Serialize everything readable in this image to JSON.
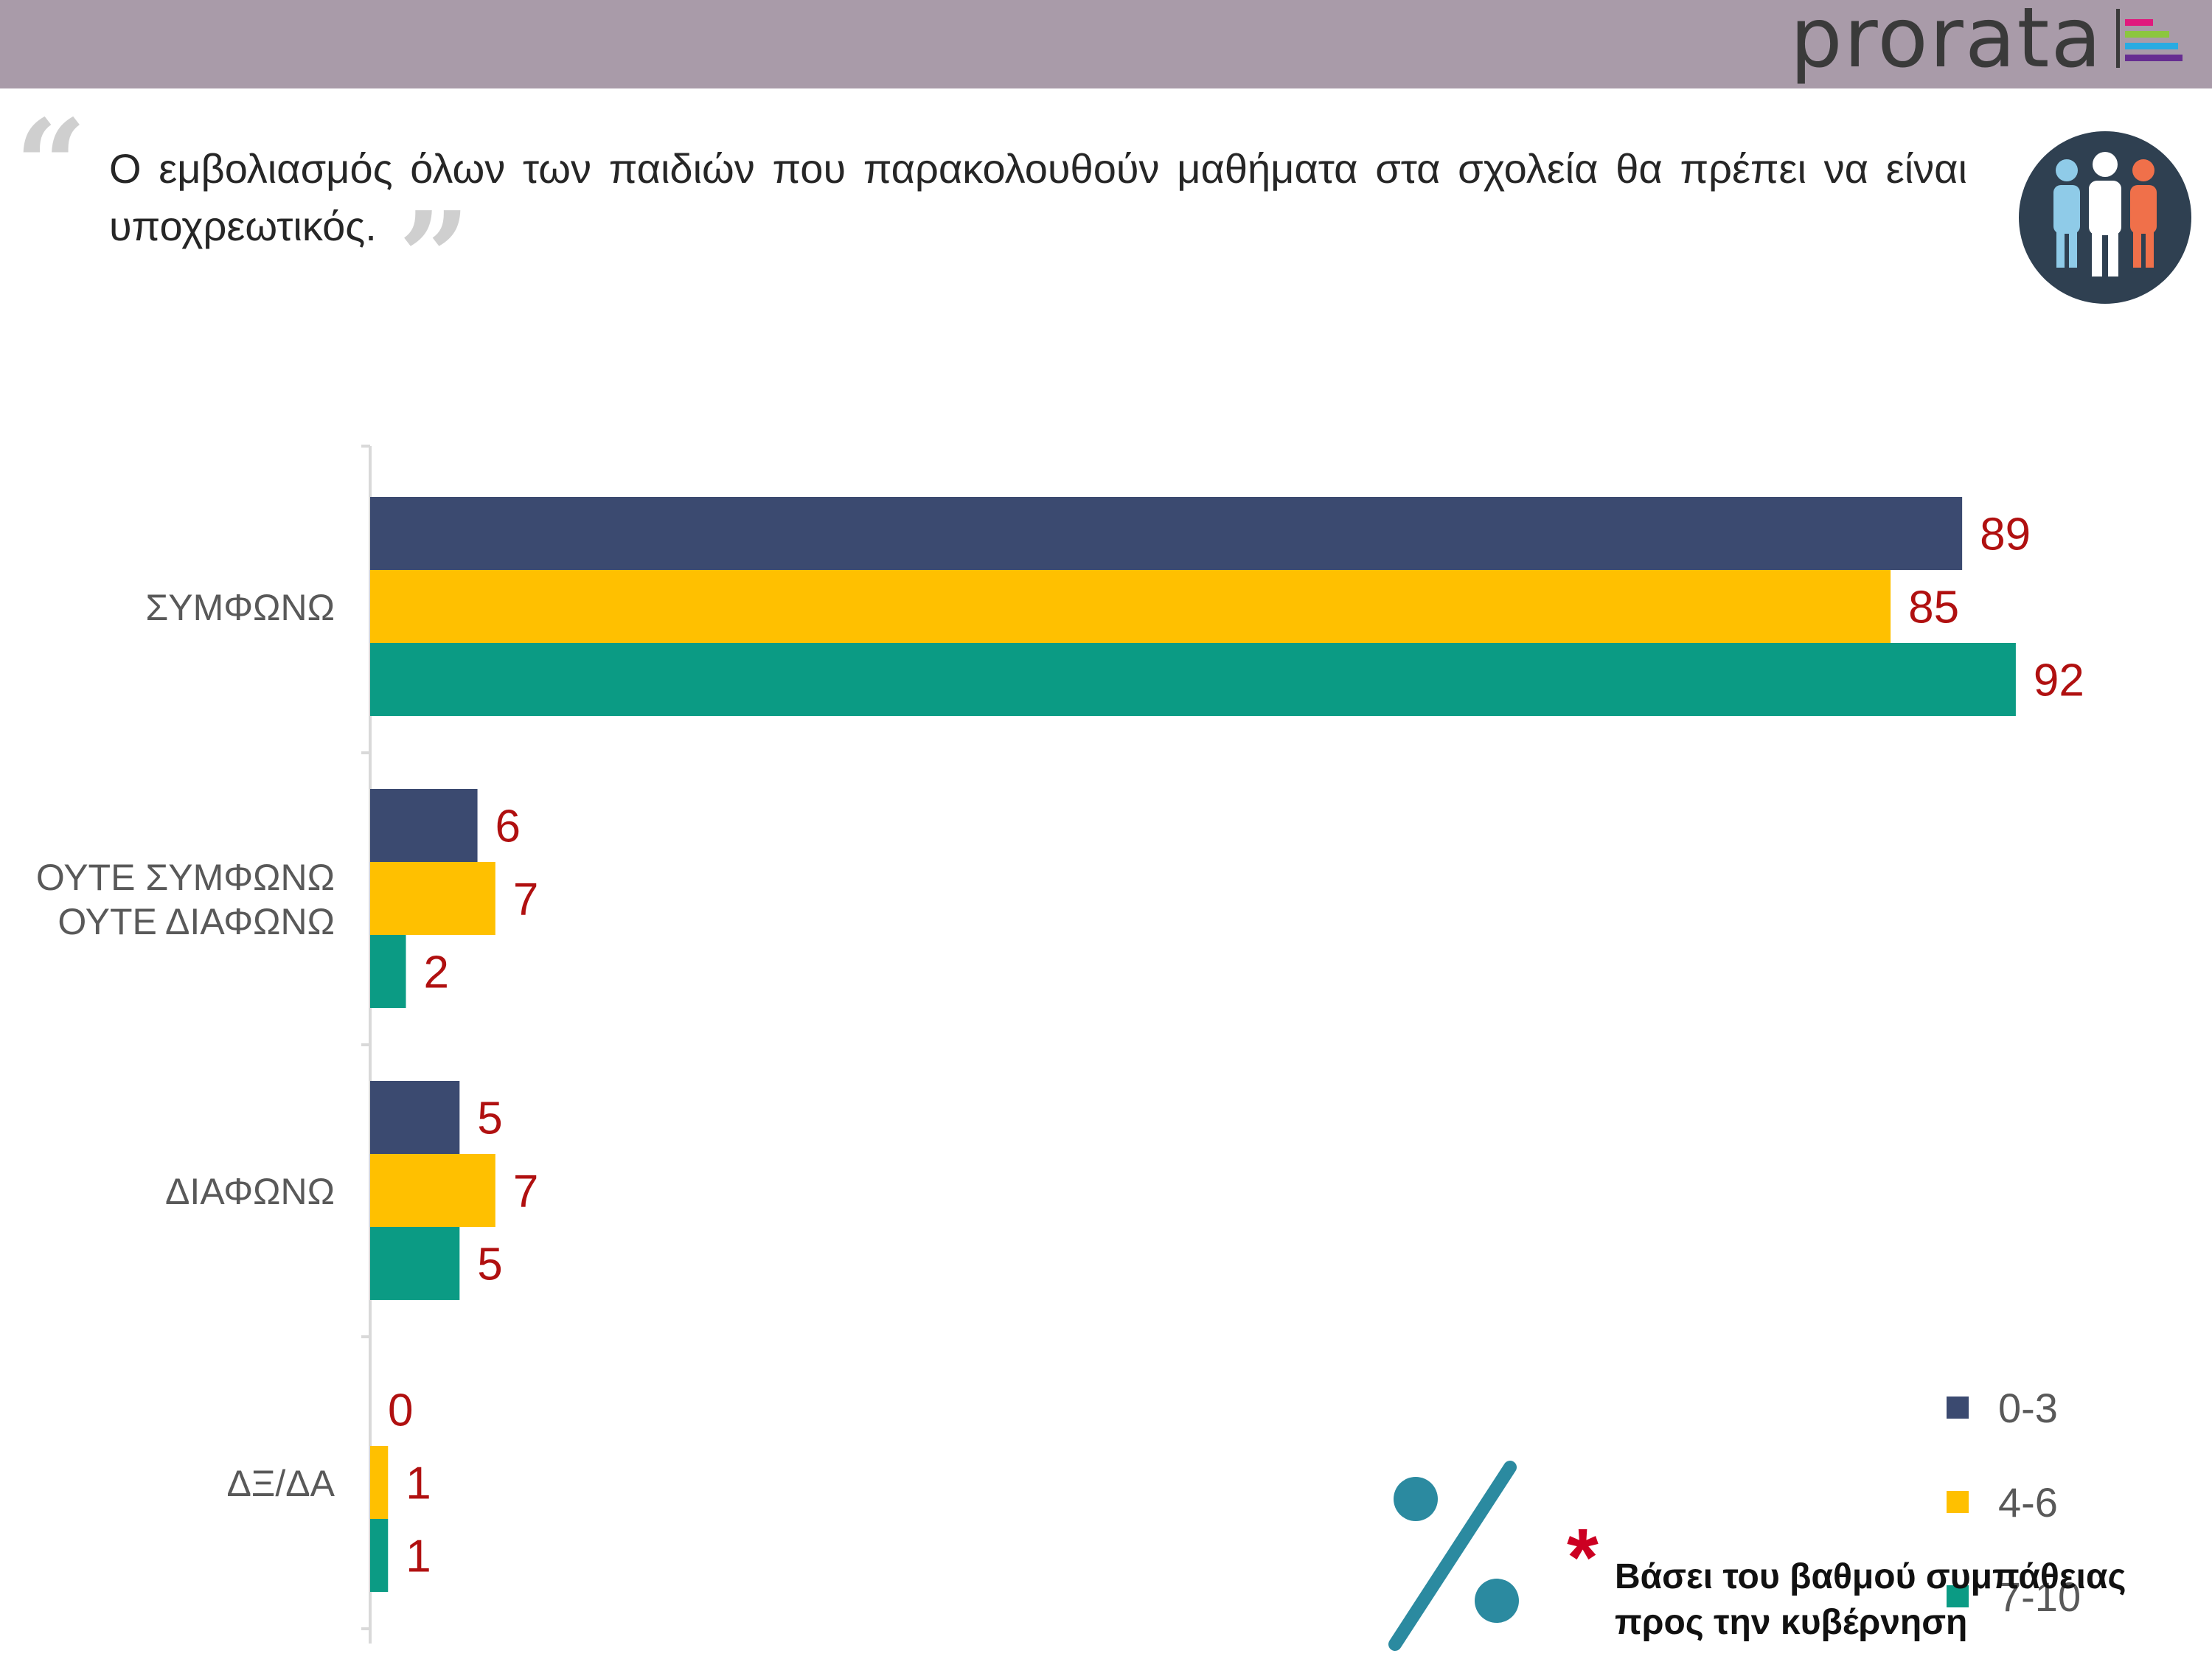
{
  "header": {
    "brand": "prorata",
    "bar_color": "#a99ba9"
  },
  "question": {
    "text": "Ο εμβολιασμός όλων των παιδιών που παρακολουθούν μαθήματα στα σχολεία θα πρέπει να είναι υποχρεωτικός.",
    "open_quote": "“",
    "close_quote": "”"
  },
  "icons": {
    "people": "people-group-icon",
    "percent": "percent-icon",
    "note": "asterisk-icon"
  },
  "footnote": {
    "star": "*",
    "line1": "Βάσει του βαθμού συμπάθειας",
    "line2": "προς την κυβέρνηση"
  },
  "chart_data": {
    "type": "bar",
    "orientation": "horizontal",
    "categories": [
      "ΣΥΜΦΩΝΩ",
      "ΟΥΤΕ ΣΥΜΦΩΝΩ ΟΥΤΕ ΔΙΑΦΩΝΩ",
      "ΔΙΑΦΩΝΩ",
      "ΔΞ/ΔΑ"
    ],
    "category_lines": [
      [
        "ΣΥΜΦΩΝΩ"
      ],
      [
        "ΟΥΤΕ ΣΥΜΦΩΝΩ",
        "ΟΥΤΕ ΔΙΑΦΩΝΩ"
      ],
      [
        "ΔΙΑΦΩΝΩ"
      ],
      [
        "ΔΞ/ΔΑ"
      ]
    ],
    "series": [
      {
        "name": "0-3",
        "color": "#3b4a70",
        "values": [
          89,
          6,
          5,
          0
        ]
      },
      {
        "name": "4-6",
        "color": "#ffc000",
        "values": [
          85,
          7,
          7,
          1
        ]
      },
      {
        "name": "7-10",
        "color": "#0b9b84",
        "values": [
          92,
          2,
          5,
          1
        ]
      }
    ],
    "xlim": [
      0,
      100
    ],
    "data_label_color": "#b01010",
    "legend_position": "right",
    "grid": false,
    "title": "",
    "xlabel": "",
    "ylabel": ""
  }
}
